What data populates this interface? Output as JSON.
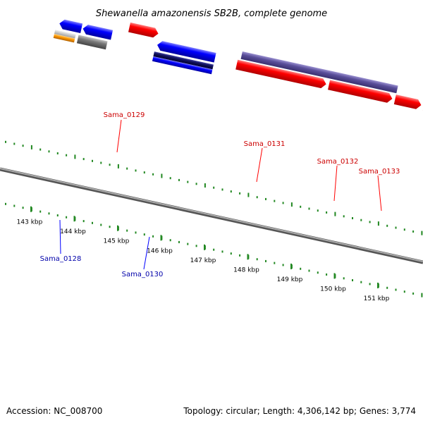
{
  "title": "Shewanella amazonensis SB2B, complete genome",
  "footer": {
    "accession": "Accession: NC_008700",
    "summary": "Topology: circular; Length: 4,306,142 bp; Genes: 3,774"
  },
  "colors": {
    "forward_gene": "#ff0000",
    "reverse_gene": "#0000ff",
    "forward_label": "#cc0000",
    "reverse_label": "#0000aa",
    "gc_dots": "#228822",
    "backbone": "#888888",
    "purple_feature": "#5a4f9a"
  },
  "ticks": [
    {
      "label": "143 kbp"
    },
    {
      "label": "144 kbp"
    },
    {
      "label": "145 kbp"
    },
    {
      "label": "146 kbp"
    },
    {
      "label": "147 kbp"
    },
    {
      "label": "148 kbp"
    },
    {
      "label": "149 kbp"
    },
    {
      "label": "150 kbp"
    },
    {
      "label": "151 kbp"
    }
  ],
  "genes": [
    {
      "id": "Sama_0128",
      "strand": "reverse"
    },
    {
      "id": "Sama_0129",
      "strand": "forward"
    },
    {
      "id": "Sama_0130",
      "strand": "reverse"
    },
    {
      "id": "Sama_0131",
      "strand": "forward"
    },
    {
      "id": "Sama_0132",
      "strand": "forward"
    },
    {
      "id": "Sama_0133",
      "strand": "forward"
    }
  ]
}
